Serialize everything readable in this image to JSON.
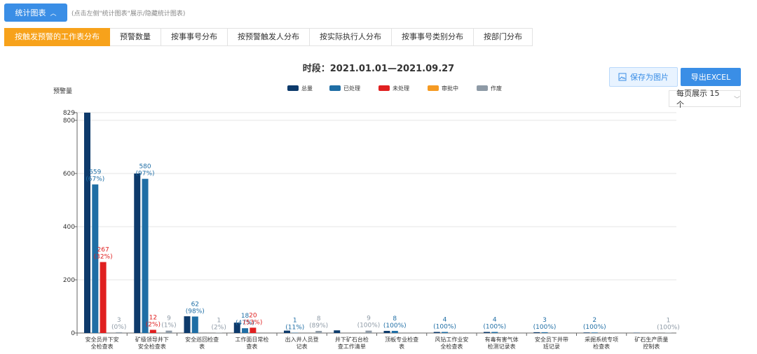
{
  "toolbar": {
    "toggle_label": "统计图表",
    "hint": "(点击左侧\"统计图表\"展示/隐藏统计图表)",
    "save_label": "保存为图片",
    "export_label": "导出EXCEL",
    "page_size_label": "每页展示 15 个"
  },
  "tabs": [
    {
      "label": "按触发预警的工作表分布",
      "active": true
    },
    {
      "label": "预警数量",
      "active": false
    },
    {
      "label": "按事事号分布",
      "active": false
    },
    {
      "label": "按预警触发人分布",
      "active": false
    },
    {
      "label": "按实际执行人分布",
      "active": false
    },
    {
      "label": "按事事号类别分布",
      "active": false
    },
    {
      "label": "按部门分布",
      "active": false
    }
  ],
  "colors": {
    "accent": "#3a8ee6",
    "active_tab": "#f7a21b",
    "series": [
      "#0d3a6b",
      "#1f6ea5",
      "#e02020",
      "#f59a23",
      "#8e9aa6"
    ]
  },
  "chart_data": {
    "type": "bar",
    "title": "时段：2021.01.01—2021.09.27",
    "ylabel": "预警量",
    "ylim": [
      0,
      829
    ],
    "yticks": [
      0,
      200,
      400,
      600,
      800,
      829
    ],
    "legend_position": "top-center",
    "grid": true,
    "categories": [
      [
        "安全员井下安",
        "全检查表"
      ],
      [
        "矿级领导井下",
        "安全检查表"
      ],
      [
        "安全巡回检查",
        "表"
      ],
      [
        "工作面日常检",
        "查表"
      ],
      [
        "出入井人员登",
        "记表"
      ],
      [
        "井下矿石台检",
        "查工作清单"
      ],
      [
        "顶板专业检查",
        "表"
      ],
      [
        "风钻工作业安",
        "全检查表"
      ],
      [
        "有毒有害气体",
        "检测记录表"
      ],
      [
        "安全员下井带",
        "班记录"
      ],
      [
        "采掘系统专项",
        "检查表"
      ],
      [
        "矿石生产质量",
        "控制表"
      ]
    ],
    "series": [
      {
        "name": "总量",
        "values": [
          829,
          600,
          63,
          39,
          9,
          10,
          8,
          4,
          4,
          3,
          2,
          1
        ]
      },
      {
        "name": "已处理",
        "values": [
          559,
          580,
          62,
          18,
          1,
          0,
          8,
          4,
          4,
          3,
          2,
          0
        ]
      },
      {
        "name": "未处理",
        "values": [
          267,
          12,
          0,
          20,
          0,
          0,
          0,
          0,
          0,
          0,
          0,
          0
        ]
      },
      {
        "name": "审批中",
        "values": [
          0,
          0,
          0,
          0,
          0,
          0,
          0,
          0,
          0,
          0,
          0,
          0
        ]
      },
      {
        "name": "作废",
        "values": [
          3,
          9,
          1,
          0,
          8,
          9,
          0,
          0,
          0,
          0,
          0,
          1
        ]
      }
    ],
    "data_labels": [
      {
        "category": 0,
        "series": 1,
        "value": "559",
        "pct": "(67%)"
      },
      {
        "category": 0,
        "series": 2,
        "value": "267",
        "pct": "(32%)"
      },
      {
        "category": 0,
        "series": 4,
        "value": "3",
        "pct": "(0%)"
      },
      {
        "category": 1,
        "series": 1,
        "value": "580",
        "pct": "(97%)"
      },
      {
        "category": 1,
        "series": 2,
        "value": "12",
        "pct": "(2%)"
      },
      {
        "category": 1,
        "series": 4,
        "value": "9",
        "pct": "(1%)"
      },
      {
        "category": 2,
        "series": 1,
        "value": "62",
        "pct": "(98%)"
      },
      {
        "category": 2,
        "series": 4,
        "value": "1",
        "pct": "(2%)"
      },
      {
        "category": 3,
        "series": 1,
        "value": "18",
        "pct": "(47%)"
      },
      {
        "category": 3,
        "series": 2,
        "value": "20",
        "pct": "(53%)"
      },
      {
        "category": 4,
        "series": 1,
        "value": "1",
        "pct": "(11%)"
      },
      {
        "category": 4,
        "series": 4,
        "value": "8",
        "pct": "(89%)"
      },
      {
        "category": 5,
        "series": 4,
        "value": "9",
        "pct": "(100%)"
      },
      {
        "category": 6,
        "series": 1,
        "value": "8",
        "pct": "(100%)"
      },
      {
        "category": 7,
        "series": 1,
        "value": "4",
        "pct": "(100%)"
      },
      {
        "category": 8,
        "series": 1,
        "value": "4",
        "pct": "(100%)"
      },
      {
        "category": 9,
        "series": 1,
        "value": "3",
        "pct": "(100%)"
      },
      {
        "category": 10,
        "series": 1,
        "value": "2",
        "pct": "(100%)"
      },
      {
        "category": 11,
        "series": 4,
        "value": "1",
        "pct": "(100%)"
      }
    ]
  }
}
